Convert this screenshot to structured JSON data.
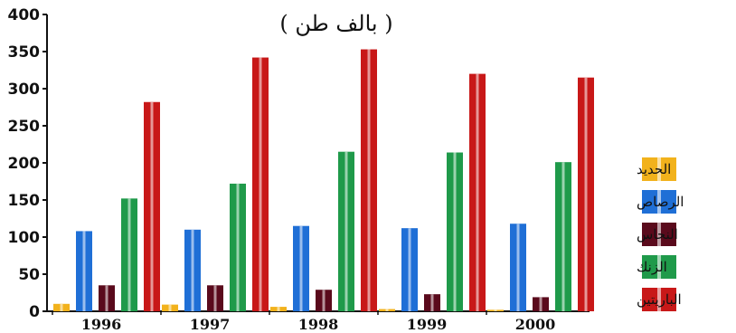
{
  "chart_data": {
    "type": "bar",
    "title": "( بالف طن )",
    "xlabel": "",
    "ylabel": "",
    "ylim": [
      0,
      400
    ],
    "yticks": [
      "0",
      "50",
      "100",
      "150",
      "200",
      "250",
      "300",
      "350",
      "400"
    ],
    "categories": [
      "1996",
      "1997",
      "1998",
      "1999",
      "2000"
    ],
    "legend_position": "right",
    "grid": false,
    "series": [
      {
        "name": "الحديد",
        "color": "#f2b21c",
        "values": [
          10,
          9,
          6,
          3,
          2
        ]
      },
      {
        "name": "الرصاص",
        "color": "#1f6fd6",
        "values": [
          108,
          110,
          115,
          112,
          118
        ]
      },
      {
        "name": "النحاس",
        "color": "#5a0a1c",
        "values": [
          35,
          35,
          29,
          23,
          19
        ]
      },
      {
        "name": "الزنك",
        "color": "#1f9a4a",
        "values": [
          152,
          172,
          215,
          214,
          201
        ]
      },
      {
        "name": "الباريتين",
        "color": "#c81818",
        "values": [
          282,
          342,
          353,
          320,
          315
        ]
      }
    ]
  }
}
